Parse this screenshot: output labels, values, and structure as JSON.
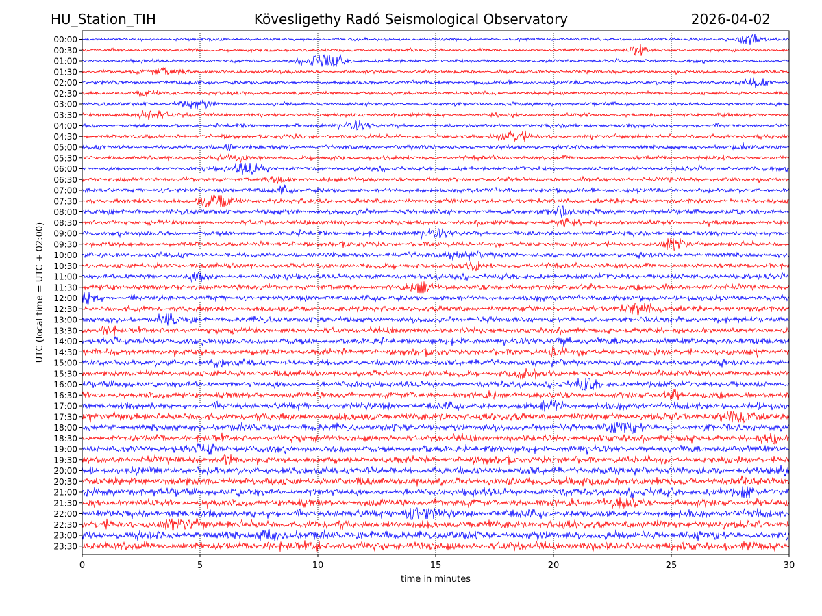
{
  "header": {
    "station": "HU_Station_TIH",
    "observatory": "Kövesligethy Radó Seismological Observatory",
    "date": "2026-04-02"
  },
  "chart_data": {
    "type": "line",
    "title": "Kövesligethy Radó Seismological Observatory",
    "xlabel": "time in minutes",
    "ylabel": "UTC (local time = UTC + 02:00)",
    "xlim": [
      0,
      30
    ],
    "x_ticks": [
      "0",
      "5",
      "10",
      "15",
      "20",
      "25",
      "30"
    ],
    "x_tick_values": [
      0,
      5,
      10,
      15,
      20,
      25,
      30
    ],
    "grid": "vertical dotted at x ticks",
    "trace_colors": [
      "#0000ff",
      "#ff0000"
    ],
    "rows": [
      "00:00",
      "00:30",
      "01:00",
      "01:30",
      "02:00",
      "02:30",
      "03:00",
      "03:30",
      "04:00",
      "04:30",
      "05:00",
      "05:30",
      "06:00",
      "06:30",
      "07:00",
      "07:30",
      "08:00",
      "08:30",
      "09:00",
      "09:30",
      "10:00",
      "10:30",
      "11:00",
      "11:30",
      "12:00",
      "12:30",
      "13:00",
      "13:30",
      "14:00",
      "14:30",
      "15:00",
      "15:30",
      "16:00",
      "16:30",
      "17:00",
      "17:30",
      "18:00",
      "18:30",
      "19:00",
      "19:30",
      "20:00",
      "20:30",
      "21:00",
      "21:30",
      "22:00",
      "22:30",
      "23:00",
      "23:30"
    ]
  }
}
